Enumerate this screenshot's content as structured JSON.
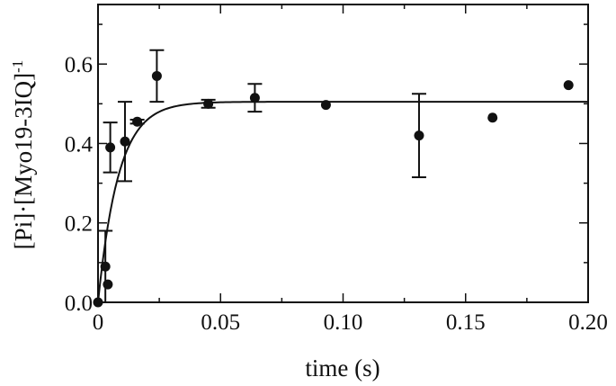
{
  "chart_data": {
    "type": "scatter",
    "xlabel": "time (s)",
    "ylabel": "[Pi]·[Myo19-3IQ]",
    "ylabel_superscript": "-1",
    "xlim": [
      0,
      0.2
    ],
    "ylim": [
      0,
      0.75
    ],
    "x_ticks": [
      0,
      0.05,
      0.1,
      0.15,
      0.2
    ],
    "x_tick_labels": [
      "0",
      "0.05",
      "0.10",
      "0.15",
      "0.20"
    ],
    "y_ticks": [
      0,
      0.2,
      0.4,
      0.6
    ],
    "y_tick_labels": [
      "0.0",
      "0.2",
      "0.4",
      "0.6"
    ],
    "grid": false,
    "points": [
      {
        "x": 0.0,
        "y": 0.0
      },
      {
        "x": 0.003,
        "y": 0.09,
        "err": 0.09
      },
      {
        "x": 0.004,
        "y": 0.045
      },
      {
        "x": 0.005,
        "y": 0.39,
        "err": 0.063
      },
      {
        "x": 0.011,
        "y": 0.405,
        "err": 0.1
      },
      {
        "x": 0.016,
        "y": 0.455,
        "err": 0.005
      },
      {
        "x": 0.024,
        "y": 0.57,
        "err": 0.065
      },
      {
        "x": 0.045,
        "y": 0.5,
        "err": 0.01
      },
      {
        "x": 0.064,
        "y": 0.515,
        "err": 0.035
      },
      {
        "x": 0.093,
        "y": 0.497
      },
      {
        "x": 0.131,
        "y": 0.42,
        "err": 0.105
      },
      {
        "x": 0.161,
        "y": 0.465
      },
      {
        "x": 0.192,
        "y": 0.547
      }
    ],
    "fit": {
      "type": "exponential-rise",
      "amplitude": 0.505,
      "rate": 120
    }
  }
}
